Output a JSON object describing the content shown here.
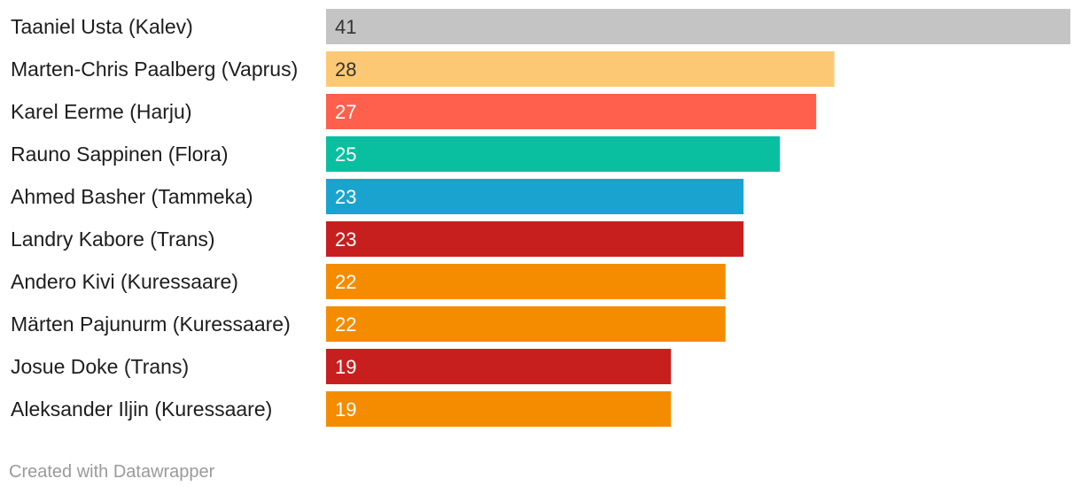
{
  "chart_data": {
    "type": "bar",
    "orientation": "horizontal",
    "categories": [
      "Taaniel Usta (Kalev)",
      "Marten-Chris Paalberg (Vaprus)",
      "Karel Eerme (Harju)",
      "Rauno Sappinen (Flora)",
      "Ahmed Basher (Tammeka)",
      "Landry Kabore (Trans)",
      "Andero Kivi (Kuressaare)",
      "Märten Pajunurm (Kuressaare)",
      "Josue Doke (Trans)",
      "Aleksander Iljin (Kuressaare)"
    ],
    "values": [
      41,
      28,
      27,
      25,
      23,
      23,
      22,
      22,
      19,
      19
    ],
    "colors": [
      "#c4c4c4",
      "#fdc874",
      "#fe604d",
      "#0abf9f",
      "#1ba3cf",
      "#c71f1e",
      "#f58c00",
      "#f58c00",
      "#c71f1e",
      "#f58c00"
    ],
    "value_label_colors": [
      "#333333",
      "#333333",
      "#ffffff",
      "#ffffff",
      "#ffffff",
      "#ffffff",
      "#ffffff",
      "#ffffff",
      "#ffffff",
      "#ffffff"
    ],
    "title": "",
    "xlabel": "",
    "ylabel": "",
    "xlim": [
      0,
      41
    ],
    "grid": false,
    "legend": "none"
  },
  "footer": {
    "credit": "Created with Datawrapper"
  }
}
